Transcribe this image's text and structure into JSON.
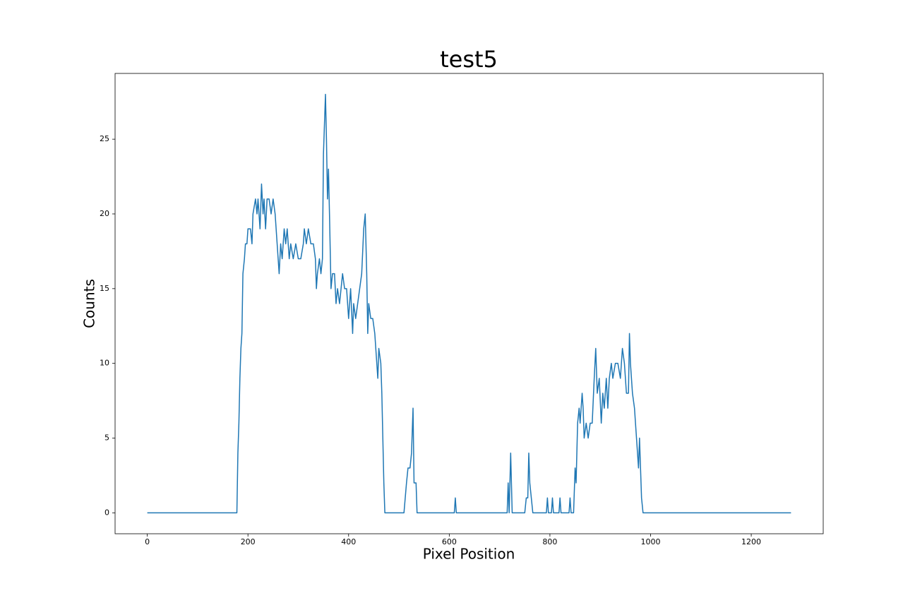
{
  "chart_data": {
    "type": "line",
    "title": "test5",
    "xlabel": "Pixel Position",
    "ylabel": "Counts",
    "color": "#1f77b4",
    "x": [
      0,
      175,
      178,
      180,
      182,
      184,
      186,
      188,
      190,
      193,
      195,
      198,
      200,
      205,
      208,
      210,
      215,
      218,
      220,
      224,
      227,
      230,
      232,
      235,
      238,
      242,
      246,
      250,
      254,
      258,
      262,
      265,
      268,
      272,
      275,
      278,
      282,
      285,
      290,
      295,
      300,
      305,
      310,
      312,
      316,
      320,
      325,
      330,
      334,
      336,
      338,
      342,
      345,
      348,
      350,
      354,
      356,
      358,
      360,
      362,
      365,
      368,
      372,
      375,
      378,
      382,
      385,
      388,
      392,
      396,
      400,
      404,
      408,
      410,
      414,
      418,
      422,
      426,
      430,
      433,
      436,
      438,
      440,
      444,
      448,
      452,
      456,
      458,
      460,
      464,
      466,
      468,
      470,
      472,
      510,
      515,
      518,
      522,
      525,
      528,
      530,
      534,
      536,
      610,
      612,
      614,
      715,
      717,
      719,
      722,
      725,
      750,
      753,
      756,
      758,
      760,
      763,
      766,
      793,
      795,
      797,
      803,
      805,
      807,
      818,
      820,
      822,
      838,
      840,
      842,
      847,
      850,
      852,
      855,
      858,
      860,
      864,
      866,
      868,
      872,
      876,
      880,
      884,
      888,
      891,
      894,
      898,
      902,
      905,
      908,
      912,
      915,
      918,
      922,
      925,
      930,
      935,
      940,
      944,
      948,
      952,
      956,
      958,
      960,
      964,
      968,
      970,
      972,
      974,
      976,
      978,
      980,
      982,
      985,
      1279
    ],
    "values": [
      0,
      0,
      0,
      4,
      6,
      9,
      11,
      12,
      16,
      17,
      18,
      18,
      19,
      19,
      18,
      20,
      21,
      20,
      21,
      19,
      22,
      20,
      21,
      19,
      21,
      21,
      20,
      21,
      20,
      18,
      16,
      18,
      17,
      19,
      18,
      19,
      17,
      18,
      17,
      18,
      17,
      17,
      18,
      19,
      18,
      19,
      18,
      18,
      17,
      15,
      16,
      17,
      16,
      17,
      24,
      28,
      25,
      21,
      23,
      20,
      15,
      16,
      16,
      14,
      15,
      14,
      15,
      16,
      15,
      15,
      13,
      15,
      12,
      14,
      13,
      14,
      15,
      16,
      19,
      20,
      16,
      12,
      14,
      13,
      13,
      12,
      10,
      9,
      11,
      10,
      8,
      5,
      2,
      0,
      0,
      2,
      3,
      3,
      4,
      7,
      2,
      2,
      0,
      0,
      1,
      0,
      0,
      2,
      0,
      4,
      0,
      0,
      1,
      1,
      4,
      2,
      1,
      0,
      0,
      1,
      0,
      0,
      1,
      0,
      0,
      1,
      0,
      0,
      1,
      0,
      0,
      3,
      2,
      6,
      7,
      6,
      8,
      7,
      5,
      6,
      5,
      6,
      6,
      9,
      11,
      8,
      9,
      6,
      8,
      7,
      9,
      7,
      9,
      10,
      9,
      10,
      10,
      9,
      11,
      10,
      8,
      8,
      12,
      10,
      8,
      7,
      6,
      5,
      4,
      3,
      5,
      3,
      1,
      0,
      0
    ],
    "xlim": [
      -64,
      1343
    ],
    "ylim": [
      -1.4,
      29.4
    ],
    "xticks": [
      0,
      200,
      400,
      600,
      800,
      1000,
      1200
    ],
    "yticks": [
      0,
      5,
      10,
      15,
      20,
      25
    ]
  }
}
